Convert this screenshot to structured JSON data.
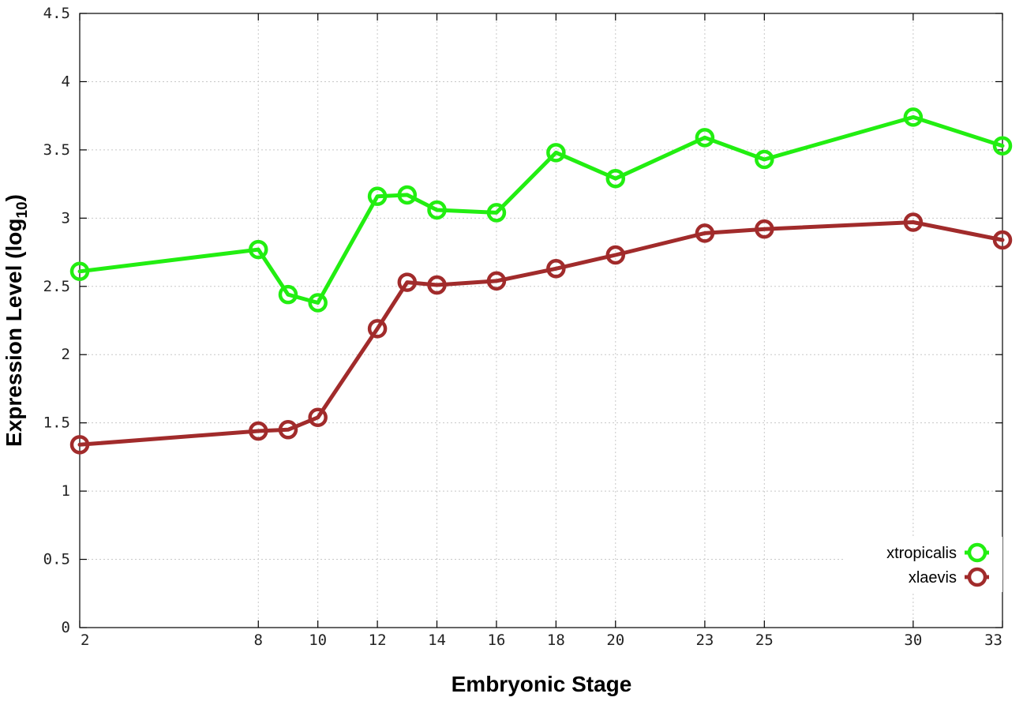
{
  "chart_data": {
    "type": "line",
    "xlabel": "Embryonic Stage",
    "ylabel_main": "Expression Level (log",
    "ylabel_sub": "10",
    "ylabel_close": ")",
    "x_ticks": [
      2,
      8,
      10,
      12,
      14,
      16,
      18,
      20,
      23,
      25,
      30,
      33
    ],
    "y_ticks": [
      "0",
      "0.5",
      "1",
      "1.5",
      "2",
      "2.5",
      "3",
      "3.5",
      "4",
      "4.5"
    ],
    "xlim": [
      2,
      33
    ],
    "ylim": [
      0,
      4.5
    ],
    "grid": true,
    "legend_position": "bottom-right",
    "x": [
      2,
      8,
      9,
      10,
      12,
      13,
      14,
      16,
      18,
      20,
      23,
      25,
      30,
      33
    ],
    "series": [
      {
        "name": "xtropicalis",
        "color": "#22ee11",
        "values": [
          2.61,
          2.77,
          2.44,
          2.38,
          3.16,
          3.17,
          3.06,
          3.04,
          3.48,
          3.29,
          3.59,
          3.43,
          3.74,
          3.53
        ]
      },
      {
        "name": "xlaevis",
        "color": "#a12b2b",
        "values": [
          1.34,
          1.44,
          1.45,
          1.54,
          2.19,
          2.53,
          2.51,
          2.54,
          2.63,
          2.73,
          2.89,
          2.92,
          2.97,
          2.84
        ]
      }
    ]
  }
}
